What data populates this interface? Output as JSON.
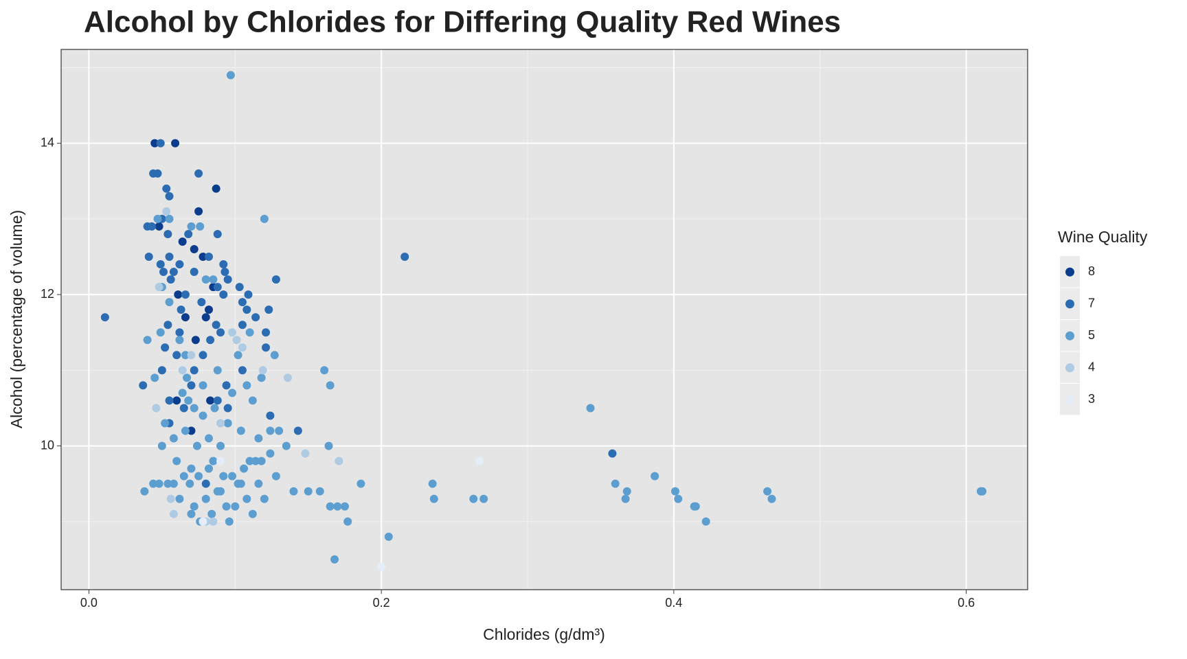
{
  "chart_data": {
    "type": "scatter",
    "title": "Alcohol by Chlorides for Differing Quality Red Wines",
    "x_label": "Chlorides (g/dm³)",
    "y_label": "Alcohol (percentage of volume)",
    "legend_title": "Wine Quality",
    "legend": "right",
    "grid": true,
    "xlim": [
      -0.019,
      0.642
    ],
    "ylim": [
      8.1,
      15.24
    ],
    "xticks": [
      {
        "value": 0,
        "label": "0.0"
      },
      0.2,
      0.4,
      0.6
    ],
    "yticks": [
      10,
      12,
      14
    ],
    "series": [
      {
        "name": "8",
        "color": "#0b3d8c",
        "x": [
          0.045,
          0.059,
          0.087,
          0.075,
          0.064,
          0.072,
          0.08,
          0.066,
          0.082,
          0.073,
          0.048,
          0.061,
          0.078,
          0.085,
          0.07,
          0.06,
          0.083
        ],
        "values": [
          14,
          14,
          13.4,
          13.1,
          12.7,
          12.6,
          11.7,
          11.7,
          11.8,
          11.4,
          12.9,
          12.0,
          12.5,
          12.1,
          10.2,
          10.6,
          10.6
        ]
      },
      {
        "name": "7",
        "color": "#2b6cb3",
        "x": [
          0.011,
          0.216,
          0.358,
          0.049,
          0.044,
          0.047,
          0.053,
          0.055,
          0.075,
          0.04,
          0.043,
          0.05,
          0.054,
          0.068,
          0.088,
          0.041,
          0.055,
          0.082,
          0.049,
          0.062,
          0.092,
          0.051,
          0.058,
          0.072,
          0.093,
          0.128,
          0.056,
          0.095,
          0.103,
          0.088,
          0.109,
          0.066,
          0.092,
          0.105,
          0.077,
          0.114,
          0.063,
          0.108,
          0.123,
          0.054,
          0.087,
          0.105,
          0.062,
          0.121,
          0.09,
          0.083,
          0.052,
          0.121,
          0.06,
          0.078,
          0.05,
          0.072,
          0.105,
          0.037,
          0.07,
          0.094,
          0.055,
          0.088,
          0.065,
          0.124,
          0.143,
          0.055,
          0.095,
          0.08
        ],
        "values": [
          11.7,
          12.5,
          9.9,
          14,
          13.6,
          13.6,
          13.4,
          13.3,
          13.6,
          12.9,
          12.9,
          13,
          12.8,
          12.8,
          12.8,
          12.5,
          12.5,
          12.5,
          12.4,
          12.4,
          12.4,
          12.3,
          12.3,
          12.3,
          12.3,
          12.2,
          12.2,
          12.2,
          12.1,
          12.1,
          12.0,
          12.0,
          12.0,
          11.9,
          11.9,
          11.7,
          11.8,
          11.8,
          11.8,
          11.6,
          11.6,
          11.6,
          11.5,
          11.5,
          11.5,
          11.4,
          11.3,
          11.3,
          11.2,
          11.2,
          11,
          11,
          11,
          10.8,
          10.8,
          10.8,
          10.6,
          10.6,
          10.5,
          10.4,
          10.2,
          10.3,
          10.5,
          9.5
        ]
      },
      {
        "name": "5",
        "color": "#5c9ecf",
        "x": [
          0.097,
          0.12,
          0.343,
          0.161,
          0.165,
          0.164,
          0.038,
          0.04,
          0.045,
          0.049,
          0.052,
          0.05,
          0.047,
          0.055,
          0.07,
          0.076,
          0.08,
          0.055,
          0.062,
          0.066,
          0.067,
          0.058,
          0.06,
          0.05,
          0.065,
          0.069,
          0.072,
          0.076,
          0.08,
          0.084,
          0.088,
          0.092,
          0.096,
          0.1,
          0.104,
          0.108,
          0.112,
          0.116,
          0.12,
          0.104,
          0.108,
          0.112,
          0.116,
          0.124,
          0.13,
          0.135,
          0.128,
          0.124,
          0.14,
          0.15,
          0.158,
          0.165,
          0.17,
          0.175,
          0.177,
          0.168,
          0.186,
          0.205,
          0.235,
          0.236,
          0.263,
          0.27,
          0.36,
          0.368,
          0.367,
          0.387,
          0.401,
          0.403,
          0.414,
          0.415,
          0.422,
          0.464,
          0.467,
          0.61,
          0.611,
          0.127,
          0.118,
          0.11,
          0.102,
          0.098,
          0.095,
          0.09,
          0.085,
          0.078,
          0.074,
          0.07,
          0.066,
          0.062,
          0.058,
          0.054,
          0.048,
          0.044,
          0.07,
          0.075,
          0.082,
          0.09,
          0.094,
          0.098,
          0.102,
          0.106,
          0.11,
          0.114,
          0.118,
          0.082,
          0.086,
          0.078,
          0.072,
          0.068,
          0.064,
          0.088,
          0.085
        ],
        "values": [
          14.9,
          13,
          10.5,
          11,
          10.8,
          10,
          9.4,
          11.4,
          10.9,
          11.5,
          10.3,
          12.1,
          13,
          13,
          12.9,
          12.9,
          12.2,
          11.9,
          11.4,
          11.2,
          10.9,
          10.1,
          9.8,
          10,
          9.6,
          9.5,
          9.2,
          9.0,
          9.3,
          9.1,
          9.4,
          9.6,
          9.0,
          9.2,
          9.5,
          9.3,
          9.1,
          9.5,
          9.3,
          10.2,
          10.8,
          10.6,
          10.1,
          10.2,
          10.2,
          10,
          9.6,
          9.9,
          9.4,
          9.4,
          9.4,
          9.2,
          9.2,
          9.2,
          9.0,
          8.5,
          9.5,
          8.8,
          9.5,
          9.3,
          9.3,
          9.3,
          9.5,
          9.4,
          9.3,
          9.6,
          9.4,
          9.3,
          9.2,
          9.2,
          9.0,
          9.4,
          9.3,
          9.4,
          9.4,
          11.2,
          10.9,
          11.5,
          11.2,
          10.7,
          10.3,
          10.0,
          9.8,
          10.4,
          10.0,
          9.7,
          10.2,
          9.3,
          9.5,
          9.5,
          9.5,
          9.5,
          9.1,
          9.6,
          9.7,
          9.4,
          9.2,
          9.6,
          9.5,
          9.7,
          9.8,
          9.8,
          9.8,
          10.1,
          10.5,
          10.8,
          10.5,
          10.6,
          10.7,
          11.0,
          12.2
        ]
      },
      {
        "name": "4",
        "color": "#aecbe3",
        "x": [
          0.053,
          0.048,
          0.046,
          0.064,
          0.098,
          0.101,
          0.105,
          0.119,
          0.136,
          0.148,
          0.171,
          0.056,
          0.058,
          0.085,
          0.08,
          0.07,
          0.09
        ],
        "values": [
          13.1,
          12.1,
          10.5,
          11.0,
          11.5,
          11.4,
          11.3,
          11.0,
          10.9,
          9.9,
          9.8,
          9.3,
          9.1,
          9.0,
          9.0,
          11.2,
          10.3
        ]
      },
      {
        "name": "3",
        "color": "#e4edf8",
        "x": [
          0.2,
          0.267,
          0.078,
          0.09
        ],
        "values": [
          8.4,
          9.8,
          9.0,
          9.8
        ]
      }
    ]
  }
}
